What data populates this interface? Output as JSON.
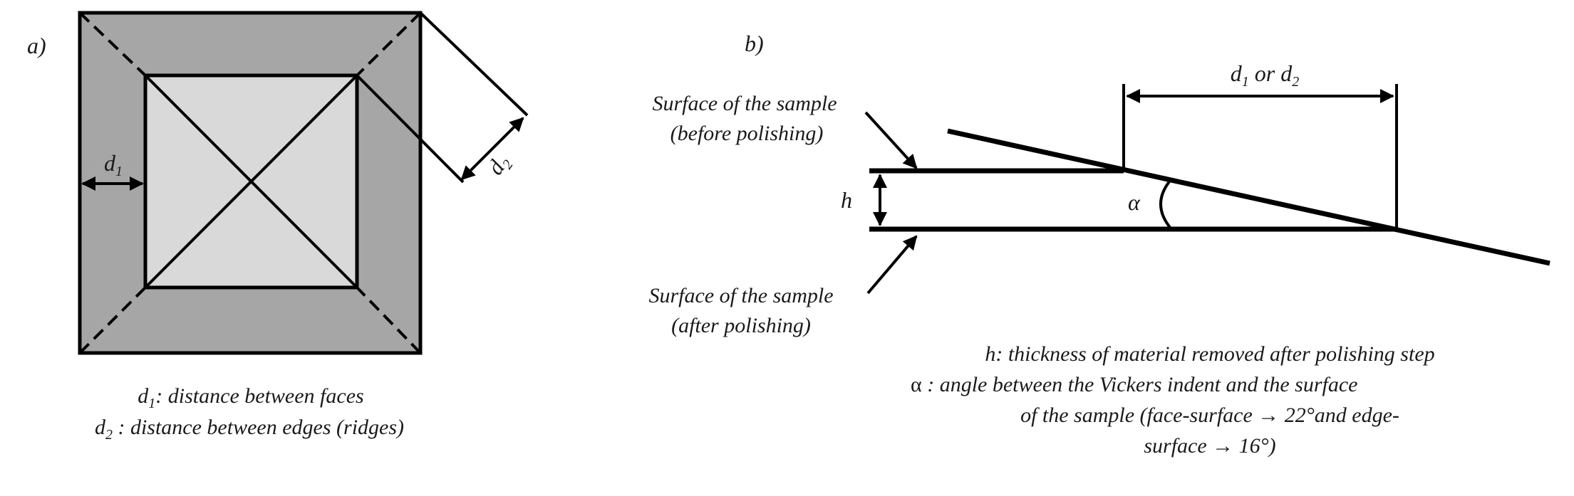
{
  "panel_a": {
    "label": "a)",
    "d1_label": {
      "main": "d",
      "sub": "1"
    },
    "d2_label": {
      "main": "d",
      "sub": "2"
    },
    "caption": {
      "line1": {
        "sym": "d",
        "sub": "1",
        "text": ": distance between faces"
      },
      "line2": {
        "sym": "d",
        "sub": "2",
        "text": " : distance between edges (ridges)"
      }
    }
  },
  "panel_b": {
    "label": "b)",
    "dim_label": {
      "d": "d",
      "sub1": "1",
      "or": " or ",
      "d2": "d",
      "sub2": "2"
    },
    "surface_before": {
      "line1": "Surface of the sample",
      "line2": "(before polishing)"
    },
    "surface_after": {
      "line1": "Surface of the sample",
      "line2": "(after polishing)"
    },
    "h_label": "h",
    "alpha_label": "α",
    "legend": {
      "line1": "h: thickness of material removed after polishing step",
      "alpha_symbol": "α",
      "line2_text": " : angle between the Vickers indent and the surface",
      "line3": "of the sample (face-surface → 22°and edge-",
      "line4": "surface → 16°)"
    }
  },
  "colors": {
    "outer_face": "#a6a6a6",
    "inner_face": "#d9d9d9",
    "line": "#000000",
    "text": "#1a1a1a"
  }
}
